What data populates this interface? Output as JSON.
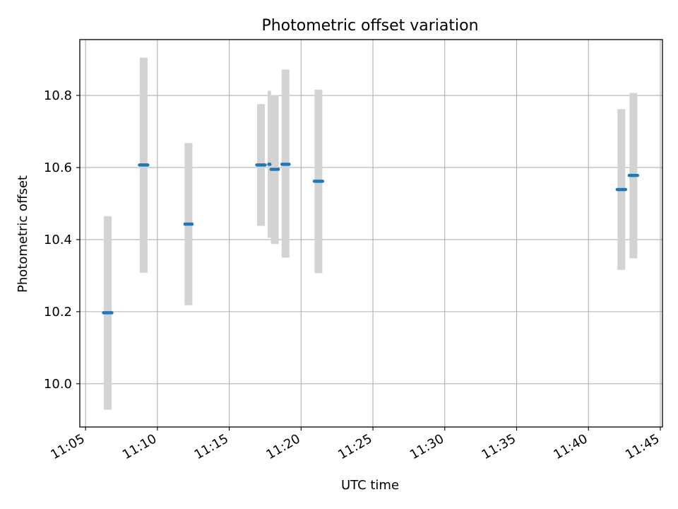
{
  "chart_data": {
    "type": "scatter",
    "title": "Photometric offset variation",
    "xlabel": "UTC time",
    "ylabel": "Photometric offset",
    "x_ticks": [
      "11:05",
      "11:10",
      "11:15",
      "11:20",
      "11:25",
      "11:30",
      "11:35",
      "11:40",
      "11:45"
    ],
    "x_tick_minutes": [
      5,
      10,
      15,
      20,
      25,
      30,
      35,
      40,
      45
    ],
    "xlim_minutes": [
      4.6,
      45.15
    ],
    "y_ticks": [
      "10.0",
      "10.2",
      "10.4",
      "10.6",
      "10.8"
    ],
    "y_tick_values": [
      10.0,
      10.2,
      10.4,
      10.6,
      10.8
    ],
    "ylim": [
      9.88,
      10.955
    ],
    "grid": true,
    "x_tick_rotation": 30,
    "colors": {
      "points": "#1f77b4",
      "errorbars": "#d3d3d3",
      "grid": "#b0b0b0",
      "axes": "#000000"
    },
    "points": [
      {
        "t_start": "11:06:15",
        "t_end": "11:06:50",
        "y": 10.197,
        "yerr_low": 9.928,
        "yerr_high": 10.465
      },
      {
        "t_start": "11:08:45",
        "t_end": "11:09:20",
        "y": 10.607,
        "yerr_low": 10.308,
        "yerr_high": 10.905
      },
      {
        "t_start": "11:11:55",
        "t_end": "11:12:25",
        "y": 10.443,
        "yerr_low": 10.218,
        "yerr_high": 10.668
      },
      {
        "t_start": "11:16:55",
        "t_end": "11:17:30",
        "y": 10.607,
        "yerr_low": 10.438,
        "yerr_high": 10.776
      },
      {
        "t_start": "11:17:45",
        "t_end": "11:17:50",
        "y": 10.609,
        "yerr_low": 10.405,
        "yerr_high": 10.813
      },
      {
        "t_start": "11:17:55",
        "t_end": "11:18:25",
        "y": 10.595,
        "yerr_low": 10.388,
        "yerr_high": 10.801
      },
      {
        "t_start": "11:18:40",
        "t_end": "11:19:10",
        "y": 10.609,
        "yerr_low": 10.35,
        "yerr_high": 10.872
      },
      {
        "t_start": "11:20:55",
        "t_end": "11:21:30",
        "y": 10.562,
        "yerr_low": 10.307,
        "yerr_high": 10.816
      },
      {
        "t_start": "11:42:00",
        "t_end": "11:42:35",
        "y": 10.539,
        "yerr_low": 10.316,
        "yerr_high": 10.762
      },
      {
        "t_start": "11:42:50",
        "t_end": "11:43:25",
        "y": 10.578,
        "yerr_low": 10.348,
        "yerr_high": 10.807
      }
    ]
  }
}
